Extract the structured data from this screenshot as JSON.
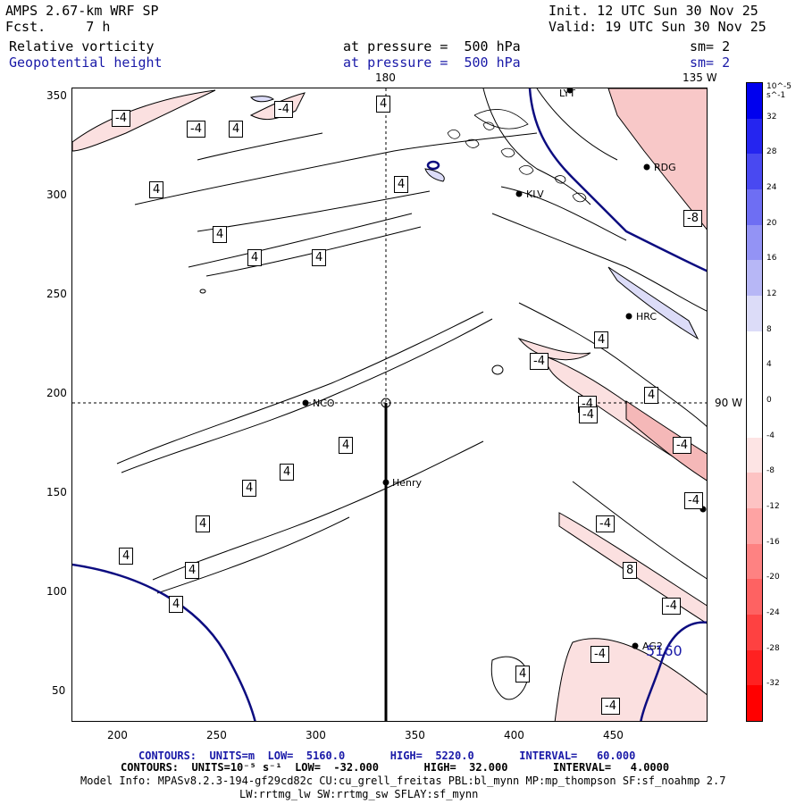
{
  "header": {
    "model_title": "AMPS 2.67-km WRF SP",
    "forecast": "Fcst.     7 h",
    "init": "Init. 12 UTC Sun 30 Nov 25",
    "valid": "Valid: 19 UTC Sun 30 Nov 25",
    "field1_name": "Relative vorticity",
    "field1_level": "at pressure =  500 hPa",
    "field1_sm": "sm= 2",
    "field2_name": "Geopotential height",
    "field2_level": "at pressure =  500 hPa",
    "field2_sm": "sm= 2"
  },
  "map": {
    "top_labels": [
      "180",
      "135 W"
    ],
    "right_label": "90 W",
    "x_ticks": [
      "200",
      "250",
      "300",
      "350",
      "400",
      "450"
    ],
    "y_ticks": [
      "350",
      "300",
      "250",
      "200",
      "150",
      "100",
      "50"
    ],
    "stations": [
      "RDG",
      "KLV",
      "HRC",
      "NCO",
      "Henry",
      "AG2",
      "LYT"
    ],
    "height_contour_label": "5160",
    "vorticity_contour_labels": [
      "-4",
      "-4",
      "-4",
      "4",
      "4",
      "4",
      "4",
      "4",
      "4",
      "4",
      "4",
      "4",
      "4",
      "4",
      "4",
      "4",
      "4",
      "4",
      "4",
      "4",
      "-4",
      "-4",
      "-4",
      "-4",
      "-4",
      "8",
      "-8",
      "-4",
      "-4",
      "-4",
      "-4"
    ]
  },
  "colorbar": {
    "unit": "10^-5 s^-1",
    "ticks": [
      "32",
      "28",
      "24",
      "20",
      "16",
      "12",
      "8",
      "4",
      "0",
      "-4",
      "-8",
      "-12",
      "-16",
      "-20",
      "-24",
      "-28",
      "-32"
    ],
    "colors": {
      "neg_strong": "#ff0000",
      "neg_weak": "#fde4e4",
      "pos_strong": "#0000ee",
      "pos_weak": "#dcdcf8",
      "contour_height": "#0c0c80"
    }
  },
  "footer": {
    "line1": "CONTOURS:  UNITS=m  LOW=  5160.0       HIGH=  5220.0       INTERVAL=   60.000",
    "line2": "CONTOURS:  UNITS=10⁻⁵ s⁻¹  LOW=  -32.000       HIGH=  32.000       INTERVAL=   4.0000",
    "line3": "Model Info: MPASv8.2.3-194-gf29cd82c CU:cu_grell_freitas PBL:bl_mynn MP:mp_thompson SF:sf_noahmp 2.7",
    "line4": "LW:rrtmg_lw SW:rrtmg_sw SFLAY:sf_mynn"
  }
}
